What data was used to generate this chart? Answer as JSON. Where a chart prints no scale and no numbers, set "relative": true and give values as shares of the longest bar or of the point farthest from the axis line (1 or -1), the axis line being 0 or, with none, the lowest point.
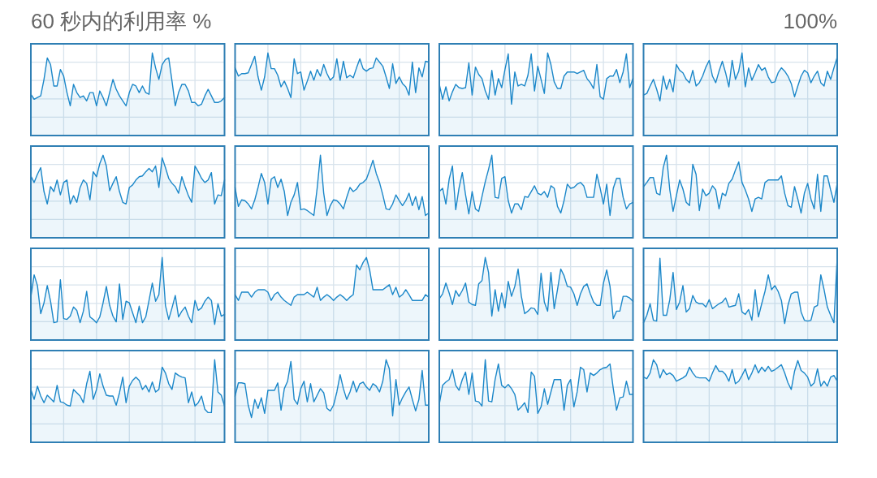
{
  "chart_data": [
    {
      "type": "area",
      "relative": true,
      "title": "60 秒内的利用率 %",
      "categories": [
        null,
        null,
        null,
        null,
        null,
        null,
        null,
        null,
        null,
        null,
        null,
        null,
        null,
        null,
        null,
        null,
        null,
        null,
        null,
        null,
        null,
        null,
        null,
        null,
        null,
        null,
        null,
        null,
        null,
        null,
        null,
        null,
        null,
        null,
        null,
        null,
        null,
        null,
        null,
        null,
        null,
        null,
        null,
        null,
        null,
        null,
        null,
        null,
        null,
        null,
        null,
        null,
        null,
        null,
        null,
        null,
        null,
        null,
        null,
        null
      ],
      "values": [
        0.5,
        0.44,
        0.46,
        0.48,
        0.68,
        0.94,
        0.86,
        0.6,
        0.6,
        0.8,
        0.72,
        0.52,
        0.36,
        0.62,
        0.52,
        0.46,
        0.48,
        0.42,
        0.52,
        0.52,
        0.36,
        0.54,
        0.46,
        0.36,
        0.52,
        0.68,
        0.56,
        0.48,
        0.42,
        0.36,
        0.52,
        0.62,
        0.6,
        0.52,
        0.6,
        0.52,
        0.5,
        1,
        0.82,
        0.68,
        0.86,
        0.92,
        0.94,
        0.66,
        0.36,
        0.52,
        0.62,
        0.62,
        0.54,
        0.4,
        0.4,
        0.36,
        0.38,
        0.48,
        0.56,
        0.48,
        0.4,
        0.4,
        0.42,
        0.46
      ],
      "color": "#1b87c9",
      "grid": true
    },
    {
      "type": "area",
      "relative": true,
      "categories": [
        null,
        null,
        null,
        null,
        null,
        null,
        null,
        null,
        null,
        null,
        null,
        null,
        null,
        null,
        null,
        null,
        null,
        null,
        null,
        null,
        null,
        null,
        null,
        null,
        null,
        null,
        null,
        null,
        null,
        null,
        null,
        null,
        null,
        null,
        null,
        null,
        null,
        null,
        null,
        null,
        null,
        null,
        null,
        null,
        null,
        null,
        null,
        null,
        null,
        null,
        null,
        null,
        null,
        null,
        null,
        null,
        null,
        null,
        null,
        null
      ],
      "values": [
        0.82,
        0.72,
        0.75,
        0.75,
        0.76,
        0.86,
        0.96,
        0.71,
        0.55,
        0.71,
        1,
        0.81,
        0.81,
        0.73,
        0.59,
        0.66,
        0.57,
        0.46,
        0.93,
        0.75,
        0.77,
        0.55,
        0.66,
        0.78,
        0.67,
        0.8,
        0.72,
        0.86,
        0.75,
        0.67,
        0.71,
        0.93,
        0.67,
        0.9,
        0.7,
        0.73,
        0.7,
        0.82,
        0.93,
        0.81,
        0.78,
        0.81,
        0.82,
        0.94,
        0.89,
        0.84,
        0.71,
        0.57,
        0.87,
        0.63,
        0.71,
        0.63,
        0.59,
        0.49,
        0.89,
        0.52,
        0.82,
        0.71,
        0.9,
        0.89
      ],
      "color": "#1b87c9",
      "grid": true
    },
    {
      "type": "area",
      "relative": true,
      "categories": [
        null,
        null,
        null,
        null,
        null,
        null,
        null,
        null,
        null,
        null,
        null,
        null,
        null,
        null,
        null,
        null,
        null,
        null,
        null,
        null,
        null,
        null,
        null,
        null,
        null,
        null,
        null,
        null,
        null,
        null,
        null,
        null,
        null,
        null,
        null,
        null,
        null,
        null,
        null,
        null,
        null,
        null,
        null,
        null,
        null,
        null,
        null,
        null,
        null,
        null,
        null,
        null,
        null,
        null,
        null,
        null,
        null,
        null,
        null,
        null
      ],
      "values": [
        0.62,
        0.44,
        0.59,
        0.42,
        0.53,
        0.62,
        0.58,
        0.57,
        0.58,
        0.88,
        0.49,
        0.83,
        0.74,
        0.69,
        0.54,
        0.44,
        0.79,
        0.49,
        0.69,
        0.58,
        0.8,
        0.99,
        0.38,
        0.77,
        0.6,
        0.62,
        0.6,
        0.73,
        0.99,
        0.54,
        0.84,
        0.68,
        0.51,
        1,
        0.86,
        0.65,
        0.57,
        0.57,
        0.72,
        0.77,
        0.77,
        0.77,
        0.75,
        0.77,
        0.79,
        0.69,
        0.64,
        0.57,
        0.86,
        0.47,
        0.44,
        0.69,
        0.72,
        0.72,
        0.8,
        0.64,
        0.77,
        0.99,
        0.58,
        0.69
      ],
      "color": "#1b87c9",
      "grid": true
    },
    {
      "type": "area",
      "relative": true,
      "annotations": [
        "100%"
      ],
      "categories": [
        null,
        null,
        null,
        null,
        null,
        null,
        null,
        null,
        null,
        null,
        null,
        null,
        null,
        null,
        null,
        null,
        null,
        null,
        null,
        null,
        null,
        null,
        null,
        null,
        null,
        null,
        null,
        null,
        null,
        null,
        null,
        null,
        null,
        null,
        null,
        null,
        null,
        null,
        null,
        null,
        null,
        null,
        null,
        null,
        null,
        null,
        null,
        null,
        null,
        null,
        null,
        null,
        null,
        null,
        null,
        null,
        null,
        null,
        null,
        null
      ],
      "values": [
        0.49,
        0.51,
        0.6,
        0.68,
        0.56,
        0.42,
        0.72,
        0.56,
        0.68,
        0.53,
        0.86,
        0.79,
        0.76,
        0.68,
        0.64,
        0.79,
        0.6,
        0.64,
        0.72,
        0.83,
        0.91,
        0.72,
        0.64,
        0.78,
        0.9,
        0.76,
        0.59,
        0.91,
        0.68,
        0.78,
        1,
        0.59,
        0.82,
        0.67,
        0.76,
        0.86,
        0.79,
        0.82,
        0.71,
        0.64,
        0.65,
        0.76,
        0.82,
        0.78,
        0.72,
        0.63,
        0.47,
        0.6,
        0.72,
        0.79,
        0.76,
        0.64,
        0.72,
        0.78,
        0.64,
        0.6,
        0.78,
        0.68,
        0.82,
        0.95
      ],
      "color": "#1b87c9",
      "grid": true
    },
    {
      "type": "area",
      "relative": true,
      "categories": [
        null,
        null,
        null,
        null,
        null,
        null,
        null,
        null,
        null,
        null,
        null,
        null,
        null,
        null,
        null,
        null,
        null,
        null,
        null,
        null,
        null,
        null,
        null,
        null,
        null,
        null,
        null,
        null,
        null,
        null,
        null,
        null,
        null,
        null,
        null,
        null,
        null,
        null,
        null,
        null,
        null,
        null,
        null,
        null,
        null,
        null,
        null,
        null,
        null,
        null,
        null,
        null,
        null,
        null,
        null,
        null,
        null,
        null,
        null,
        null
      ],
      "values": [
        0.75,
        0.67,
        0.77,
        0.85,
        0.56,
        0.41,
        0.62,
        0.56,
        0.7,
        0.52,
        0.67,
        0.7,
        0.41,
        0.51,
        0.43,
        0.61,
        0.7,
        0.66,
        0.46,
        0.8,
        0.74,
        0.9,
        1,
        0.87,
        0.57,
        0.66,
        0.74,
        0.56,
        0.43,
        0.41,
        0.61,
        0.64,
        0.7,
        0.74,
        0.75,
        0.8,
        0.84,
        0.8,
        0.87,
        0.61,
        0.97,
        0.85,
        0.72,
        0.66,
        0.62,
        0.54,
        0.74,
        0.62,
        0.51,
        0.43,
        0.87,
        0.8,
        0.72,
        0.67,
        0.7,
        0.79,
        0.41,
        0.52,
        0.51,
        0.7
      ],
      "color": "#1b87c9",
      "grid": true
    },
    {
      "type": "area",
      "relative": true,
      "categories": [
        null,
        null,
        null,
        null,
        null,
        null,
        null,
        null,
        null,
        null,
        null,
        null,
        null,
        null,
        null,
        null,
        null,
        null,
        null,
        null,
        null,
        null,
        null,
        null,
        null,
        null,
        null,
        null,
        null,
        null,
        null,
        null,
        null,
        null,
        null,
        null,
        null,
        null,
        null,
        null,
        null,
        null,
        null,
        null,
        null,
        null,
        null,
        null,
        null,
        null,
        null,
        null,
        null,
        null,
        null,
        null,
        null,
        null,
        null,
        null
      ],
      "values": [
        0.61,
        0.38,
        0.46,
        0.45,
        0.41,
        0.35,
        0.46,
        0.61,
        0.78,
        0.67,
        0.41,
        0.71,
        0.74,
        0.61,
        0.71,
        0.56,
        0.27,
        0.43,
        0.52,
        0.67,
        0.34,
        0.35,
        0.33,
        0.3,
        0.27,
        0.6,
        1,
        0.54,
        0.27,
        0.39,
        0.46,
        0.45,
        0.41,
        0.35,
        0.49,
        0.61,
        0.56,
        0.59,
        0.65,
        0.67,
        0.71,
        0.82,
        0.94,
        0.78,
        0.67,
        0.52,
        0.35,
        0.34,
        0.41,
        0.52,
        0.45,
        0.39,
        0.45,
        0.54,
        0.39,
        0.5,
        0.34,
        0.5,
        0.27,
        0.3
      ],
      "color": "#1b87c9",
      "grid": true
    },
    {
      "type": "area",
      "relative": true,
      "categories": [
        null,
        null,
        null,
        null,
        null,
        null,
        null,
        null,
        null,
        null,
        null,
        null,
        null,
        null,
        null,
        null,
        null,
        null,
        null,
        null,
        null,
        null,
        null,
        null,
        null,
        null,
        null,
        null,
        null,
        null,
        null,
        null,
        null,
        null,
        null,
        null,
        null,
        null,
        null,
        null,
        null,
        null,
        null,
        null,
        null,
        null,
        null,
        null,
        null,
        null,
        null,
        null,
        null,
        null,
        null,
        null,
        null,
        null,
        null,
        null
      ],
      "values": [
        0.56,
        0.6,
        0.41,
        0.71,
        0.87,
        0.34,
        0.6,
        0.79,
        0.52,
        0.29,
        0.56,
        0.35,
        0.32,
        0.5,
        0.68,
        0.83,
        1,
        0.49,
        0.48,
        0.72,
        0.74,
        0.45,
        0.3,
        0.41,
        0.41,
        0.34,
        0.5,
        0.49,
        0.56,
        0.63,
        0.54,
        0.52,
        0.56,
        0.49,
        0.63,
        0.6,
        0.38,
        0.3,
        0.45,
        0.65,
        0.6,
        0.61,
        0.65,
        0.67,
        0.63,
        0.49,
        0.49,
        0.49,
        0.77,
        0.6,
        0.41,
        0.65,
        0.27,
        0.6,
        0.72,
        0.72,
        0.49,
        0.35,
        0.41,
        0.43
      ],
      "color": "#1b87c9",
      "grid": true
    },
    {
      "type": "area",
      "relative": true,
      "categories": [
        null,
        null,
        null,
        null,
        null,
        null,
        null,
        null,
        null,
        null,
        null,
        null,
        null,
        null,
        null,
        null,
        null,
        null,
        null,
        null,
        null,
        null,
        null,
        null,
        null,
        null,
        null,
        null,
        null,
        null,
        null,
        null,
        null,
        null,
        null,
        null,
        null,
        null,
        null,
        null,
        null,
        null,
        null,
        null,
        null,
        null,
        null,
        null,
        null,
        null,
        null,
        null,
        null,
        null,
        null,
        null,
        null,
        null,
        null,
        null
      ],
      "values": [
        0.62,
        0.67,
        0.73,
        0.73,
        0.54,
        0.52,
        0.85,
        1,
        0.58,
        0.32,
        0.51,
        0.7,
        0.59,
        0.43,
        0.39,
        0.89,
        0.77,
        0.33,
        0.59,
        0.51,
        0.54,
        0.63,
        0.58,
        0.35,
        0.54,
        0.51,
        0.66,
        0.71,
        0.82,
        0.92,
        0.67,
        0.58,
        0.47,
        0.32,
        0.47,
        0.49,
        0.47,
        0.67,
        0.7,
        0.7,
        0.7,
        0.7,
        0.75,
        0.54,
        0.39,
        0.37,
        0.62,
        0.47,
        0.3,
        0.54,
        0.66,
        0.47,
        0.35,
        0.77,
        0.32,
        0.75,
        0.75,
        0.58,
        0.43,
        0.66
      ],
      "color": "#1b87c9",
      "grid": true
    },
    {
      "type": "area",
      "relative": true,
      "categories": [
        null,
        null,
        null,
        null,
        null,
        null,
        null,
        null,
        null,
        null,
        null,
        null,
        null,
        null,
        null,
        null,
        null,
        null,
        null,
        null,
        null,
        null,
        null,
        null,
        null,
        null,
        null,
        null,
        null,
        null,
        null,
        null,
        null,
        null,
        null,
        null,
        null,
        null,
        null,
        null,
        null,
        null,
        null,
        null,
        null,
        null,
        null,
        null,
        null,
        null,
        null,
        null,
        null,
        null,
        null,
        null,
        null,
        null,
        null,
        null
      ],
      "values": [
        0.52,
        0.79,
        0.66,
        0.32,
        0.45,
        0.66,
        0.47,
        0.21,
        0.22,
        0.73,
        0.26,
        0.25,
        0.29,
        0.4,
        0.36,
        0.21,
        0.35,
        0.59,
        0.28,
        0.25,
        0.21,
        0.28,
        0.45,
        0.65,
        0.42,
        0.29,
        0.22,
        0.68,
        0.25,
        0.47,
        0.45,
        0.33,
        0.21,
        0.41,
        0.21,
        0.28,
        0.48,
        0.69,
        0.47,
        0.55,
        1,
        0.42,
        0.25,
        0.39,
        0.54,
        0.28,
        0.35,
        0.4,
        0.29,
        0.21,
        0.48,
        0.36,
        0.39,
        0.47,
        0.52,
        0.48,
        0.19,
        0.44,
        0.29,
        0.31
      ],
      "color": "#1b87c9",
      "grid": true
    },
    {
      "type": "area",
      "relative": true,
      "categories": [
        null,
        null,
        null,
        null,
        null,
        null,
        null,
        null,
        null,
        null,
        null,
        null,
        null,
        null,
        null,
        null,
        null,
        null,
        null,
        null,
        null,
        null,
        null,
        null,
        null,
        null,
        null,
        null,
        null,
        null,
        null,
        null,
        null,
        null,
        null,
        null,
        null,
        null,
        null,
        null,
        null,
        null,
        null,
        null,
        null,
        null,
        null,
        null,
        null,
        null,
        null,
        null,
        null,
        null,
        null,
        null,
        null,
        null,
        null,
        null
      ],
      "values": [
        0.55,
        0.48,
        0.58,
        0.58,
        0.58,
        0.52,
        0.58,
        0.61,
        0.61,
        0.61,
        0.58,
        0.48,
        0.55,
        0.58,
        0.52,
        0.48,
        0.45,
        0.42,
        0.52,
        0.55,
        0.55,
        0.55,
        0.58,
        0.55,
        0.52,
        0.64,
        0.48,
        0.52,
        0.55,
        0.52,
        0.48,
        0.52,
        0.55,
        0.52,
        0.48,
        0.52,
        0.55,
        0.91,
        0.85,
        0.94,
        1,
        0.85,
        0.61,
        0.61,
        0.61,
        0.61,
        0.64,
        0.67,
        0.55,
        0.64,
        0.52,
        0.55,
        0.61,
        0.55,
        0.48,
        0.48,
        0.48,
        0.48,
        0.55,
        0.52
      ],
      "color": "#1b87c9",
      "grid": true
    },
    {
      "type": "area",
      "relative": true,
      "categories": [
        null,
        null,
        null,
        null,
        null,
        null,
        null,
        null,
        null,
        null,
        null,
        null,
        null,
        null,
        null,
        null,
        null,
        null,
        null,
        null,
        null,
        null,
        null,
        null,
        null,
        null,
        null,
        null,
        null,
        null,
        null,
        null,
        null,
        null,
        null,
        null,
        null,
        null,
        null,
        null,
        null,
        null,
        null,
        null,
        null,
        null,
        null,
        null,
        null,
        null,
        null,
        null,
        null,
        null,
        null,
        null,
        null,
        null,
        null,
        null
      ],
      "values": [
        0.5,
        0.56,
        0.69,
        0.57,
        0.43,
        0.6,
        0.53,
        0.6,
        0.69,
        0.46,
        0.43,
        0.42,
        0.68,
        0.72,
        1,
        0.82,
        0.29,
        0.61,
        0.35,
        0.57,
        0.39,
        0.71,
        0.53,
        0.65,
        0.86,
        0.53,
        0.32,
        0.35,
        0.39,
        0.38,
        0.31,
        0.81,
        0.46,
        0.35,
        0.82,
        0.38,
        0.61,
        0.86,
        0.78,
        0.65,
        0.64,
        0.56,
        0.42,
        0.56,
        0.65,
        0.68,
        0.56,
        0.46,
        0.42,
        0.42,
        0.69,
        0.85,
        0.65,
        0.26,
        0.35,
        0.35,
        0.53,
        0.53,
        0.51,
        0.47
      ],
      "color": "#1b87c9",
      "grid": true
    },
    {
      "type": "area",
      "relative": true,
      "categories": [
        null,
        null,
        null,
        null,
        null,
        null,
        null,
        null,
        null,
        null,
        null,
        null,
        null,
        null,
        null,
        null,
        null,
        null,
        null,
        null,
        null,
        null,
        null,
        null,
        null,
        null,
        null,
        null,
        null,
        null,
        null,
        null,
        null,
        null,
        null,
        null,
        null,
        null,
        null,
        null,
        null,
        null,
        null,
        null,
        null,
        null,
        null,
        null,
        null,
        null,
        null,
        null,
        null,
        null,
        null,
        null,
        null,
        null,
        null,
        null
      ],
      "values": [
        0.21,
        0.3,
        0.44,
        0.24,
        0.23,
        0.99,
        0.3,
        0.3,
        0.49,
        0.82,
        0.37,
        0.46,
        0.66,
        0.34,
        0.38,
        0.54,
        0.46,
        0.44,
        0.44,
        0.4,
        0.49,
        0.38,
        0.41,
        0.44,
        0.46,
        0.51,
        0.4,
        0.41,
        0.42,
        0.56,
        0.34,
        0.31,
        0.37,
        0.24,
        0.61,
        0.28,
        0.44,
        0.59,
        0.79,
        0.61,
        0.66,
        0.59,
        0.48,
        0.2,
        0.42,
        0.56,
        0.58,
        0.58,
        0.34,
        0.24,
        0.23,
        0.24,
        0.4,
        0.42,
        0.79,
        0.61,
        0.4,
        0.3,
        0.21,
        1
      ],
      "color": "#1b87c9",
      "grid": true
    },
    {
      "type": "area",
      "relative": true,
      "categories": [
        null,
        null,
        null,
        null,
        null,
        null,
        null,
        null,
        null,
        null,
        null,
        null,
        null,
        null,
        null,
        null,
        null,
        null,
        null,
        null,
        null,
        null,
        null,
        null,
        null,
        null,
        null,
        null,
        null,
        null,
        null,
        null,
        null,
        null,
        null,
        null,
        null,
        null,
        null,
        null,
        null,
        null,
        null,
        null,
        null,
        null,
        null,
        null,
        null,
        null,
        null,
        null,
        null,
        null,
        null,
        null,
        null,
        null,
        null,
        null
      ],
      "values": [
        0.64,
        0.52,
        0.68,
        0.56,
        0.48,
        0.57,
        0.53,
        0.49,
        0.69,
        0.49,
        0.48,
        0.45,
        0.44,
        0.64,
        0.6,
        0.56,
        0.48,
        0.71,
        0.86,
        0.52,
        0.64,
        0.83,
        0.68,
        0.57,
        0.56,
        0.56,
        0.45,
        0.6,
        0.79,
        0.48,
        0.68,
        0.75,
        0.79,
        0.75,
        0.64,
        0.69,
        0.61,
        0.73,
        0.61,
        0.64,
        0.91,
        0.84,
        0.71,
        0.64,
        0.84,
        0.81,
        0.79,
        0.78,
        0.48,
        0.61,
        0.44,
        0.48,
        0.56,
        0.4,
        0.36,
        0.36,
        1,
        0.61,
        0.57,
        0.44
      ],
      "color": "#1b87c9",
      "grid": true
    },
    {
      "type": "area",
      "relative": true,
      "categories": [
        null,
        null,
        null,
        null,
        null,
        null,
        null,
        null,
        null,
        null,
        null,
        null,
        null,
        null,
        null,
        null,
        null,
        null,
        null,
        null,
        null,
        null,
        null,
        null,
        null,
        null,
        null,
        null,
        null,
        null,
        null,
        null,
        null,
        null,
        null,
        null,
        null,
        null,
        null,
        null,
        null,
        null,
        null,
        null,
        null,
        null,
        null,
        null,
        null,
        null,
        null,
        null,
        null,
        null,
        null,
        null,
        null,
        null,
        null,
        null
      ],
      "values": [
        0.56,
        0.72,
        0.72,
        0.71,
        0.45,
        0.3,
        0.52,
        0.41,
        0.54,
        0.35,
        0.63,
        0.63,
        0.63,
        0.72,
        0.39,
        0.65,
        0.74,
        0.98,
        0.52,
        0.46,
        0.65,
        0.74,
        0.49,
        0.71,
        0.49,
        0.57,
        0.65,
        0.6,
        0.41,
        0.38,
        0.45,
        0.61,
        0.82,
        0.65,
        0.52,
        0.61,
        0.74,
        0.61,
        0.71,
        0.73,
        0.67,
        0.63,
        0.71,
        0.68,
        0.61,
        0.74,
        1,
        0.89,
        0.32,
        0.76,
        0.45,
        0.54,
        0.61,
        0.67,
        0.52,
        0.38,
        0.52,
        0.87,
        0.45,
        0.45
      ],
      "color": "#1b87c9",
      "grid": true
    },
    {
      "type": "area",
      "relative": true,
      "categories": [
        null,
        null,
        null,
        null,
        null,
        null,
        null,
        null,
        null,
        null,
        null,
        null,
        null,
        null,
        null,
        null,
        null,
        null,
        null,
        null,
        null,
        null,
        null,
        null,
        null,
        null,
        null,
        null,
        null,
        null,
        null,
        null,
        null,
        null,
        null,
        null,
        null,
        null,
        null,
        null,
        null,
        null,
        null,
        null,
        null,
        null,
        null,
        null,
        null,
        null,
        null,
        null,
        null,
        null,
        null,
        null,
        null,
        null,
        null,
        null
      ],
      "values": [
        0.46,
        0.69,
        0.73,
        0.76,
        0.88,
        0.69,
        0.63,
        0.76,
        0.85,
        0.58,
        0.84,
        0.5,
        0.49,
        0.44,
        1,
        0.5,
        0.49,
        0.76,
        0.95,
        0.69,
        0.66,
        0.7,
        0.65,
        0.58,
        0.39,
        0.43,
        0.48,
        0.36,
        0.85,
        0.8,
        0.35,
        0.43,
        0.65,
        0.46,
        0.61,
        0.76,
        0.76,
        0.76,
        0.39,
        0.69,
        0.76,
        0.43,
        0.61,
        0.91,
        0.88,
        0.61,
        0.84,
        0.81,
        0.84,
        0.88,
        0.9,
        0.91,
        0.95,
        0.65,
        0.39,
        0.54,
        0.55,
        0.74,
        0.58,
        0.58
      ],
      "color": "#1b87c9",
      "grid": true
    },
    {
      "type": "area",
      "relative": true,
      "categories": [
        null,
        null,
        null,
        null,
        null,
        null,
        null,
        null,
        null,
        null,
        null,
        null,
        null,
        null,
        null,
        null,
        null,
        null,
        null,
        null,
        null,
        null,
        null,
        null,
        null,
        null,
        null,
        null,
        null,
        null,
        null,
        null,
        null,
        null,
        null,
        null,
        null,
        null,
        null,
        null,
        null,
        null,
        null,
        null,
        null,
        null,
        null,
        null,
        null,
        null,
        null,
        null,
        null,
        null,
        null,
        null,
        null,
        null,
        null,
        null
      ],
      "values": [
        0.79,
        0.77,
        0.84,
        1,
        0.94,
        0.78,
        0.88,
        0.82,
        0.84,
        0.81,
        0.74,
        0.76,
        0.78,
        0.81,
        0.91,
        0.84,
        0.79,
        0.78,
        0.78,
        0.78,
        0.74,
        0.84,
        0.93,
        0.86,
        0.86,
        0.82,
        0.74,
        0.88,
        0.71,
        0.74,
        0.81,
        0.89,
        0.76,
        0.84,
        0.94,
        0.84,
        0.91,
        0.86,
        0.92,
        0.86,
        0.88,
        0.91,
        0.94,
        0.84,
        0.72,
        0.64,
        0.86,
        0.99,
        0.87,
        0.84,
        0.79,
        0.68,
        0.72,
        0.89,
        0.68,
        0.74,
        0.68,
        0.79,
        0.81,
        0.74
      ],
      "color": "#1b87c9",
      "grid": true
    }
  ]
}
